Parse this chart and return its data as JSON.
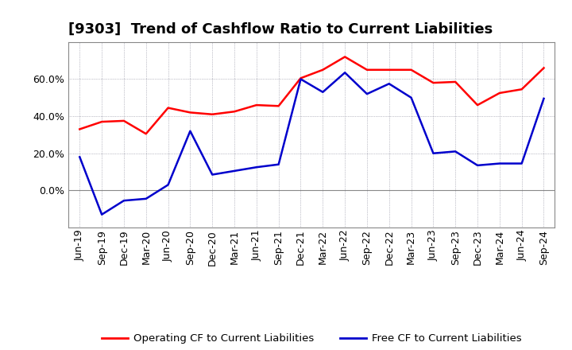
{
  "title": "[9303]  Trend of Cashflow Ratio to Current Liabilities",
  "x_labels": [
    "Jun-19",
    "Sep-19",
    "Dec-19",
    "Mar-20",
    "Jun-20",
    "Sep-20",
    "Dec-20",
    "Mar-21",
    "Jun-21",
    "Sep-21",
    "Dec-21",
    "Mar-22",
    "Jun-22",
    "Sep-22",
    "Dec-22",
    "Mar-23",
    "Jun-23",
    "Sep-23",
    "Dec-23",
    "Mar-24",
    "Jun-24",
    "Sep-24"
  ],
  "operating_cf": [
    33.0,
    37.0,
    37.5,
    30.5,
    44.5,
    42.0,
    41.0,
    42.5,
    46.0,
    45.5,
    60.5,
    65.0,
    72.0,
    65.0,
    65.0,
    65.0,
    58.0,
    58.5,
    46.0,
    52.5,
    54.5,
    66.0
  ],
  "free_cf": [
    18.0,
    -13.0,
    -5.5,
    -4.5,
    3.0,
    32.0,
    8.5,
    10.5,
    12.5,
    14.0,
    60.0,
    53.0,
    63.5,
    52.0,
    57.5,
    50.0,
    20.0,
    21.0,
    13.5,
    14.5,
    14.5,
    49.5
  ],
  "operating_color": "#ff0000",
  "free_color": "#0000cc",
  "ylim": [
    -20,
    80
  ],
  "background_color": "#ffffff",
  "plot_bg_color": "#ffffff",
  "grid_color": "#888899",
  "legend_op": "Operating CF to Current Liabilities",
  "legend_free": "Free CF to Current Liabilities",
  "title_fontsize": 13,
  "label_fontsize": 9,
  "tick_fontsize": 9
}
